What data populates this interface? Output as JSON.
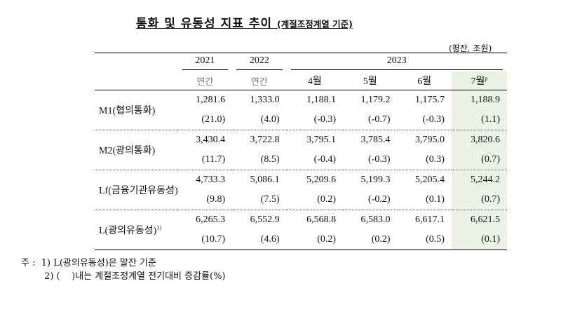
{
  "title": "통화 및 유동성 지표 추이",
  "title_note": "(계절조정계열 기준)",
  "unit": "(평잔, 조원)",
  "years": [
    "2021",
    "2022",
    "2023"
  ],
  "subheaders": [
    "연간",
    "연간",
    "4월",
    "5월",
    "6월",
    "7월"
  ],
  "subheader_sup": "p",
  "highlight_color": "#ecf3e4",
  "rows": [
    {
      "label": "M1(협의통화)",
      "sup": "",
      "values": [
        "1,281.6",
        "1,333.0",
        "1,188.1",
        "1,179.2",
        "1,175.7",
        "1,188.9"
      ],
      "changes": [
        "(21.0)",
        "(4.0)",
        "(-0.3)",
        "(-0.7)",
        "(-0.3)",
        "(1.1)"
      ]
    },
    {
      "label": "M2(광의통화)",
      "sup": "",
      "values": [
        "3,430.4",
        "3,722.8",
        "3,795.1",
        "3,785.4",
        "3,795.0",
        "3,820.6"
      ],
      "changes": [
        "(11.7)",
        "(8.5)",
        "(-0.4)",
        "(-0.3)",
        "(0.3)",
        "(0.7)"
      ]
    },
    {
      "label": "Lf(금융기관유동성)",
      "sup": "",
      "values": [
        "4,733.3",
        "5,086.1",
        "5,209.6",
        "5,199.3",
        "5,205.4",
        "5,244.2"
      ],
      "changes": [
        "(9.8)",
        "(7.5)",
        "(0.2)",
        "(-0.2)",
        "(0.1)",
        "(0.7)"
      ]
    },
    {
      "label": "L(광의유동성)",
      "sup": "1)",
      "values": [
        "6,265.3",
        "6,552.9",
        "6,568.8",
        "6,583.0",
        "6,617.1",
        "6,621.5"
      ],
      "changes": [
        "(10.7)",
        "(4.6)",
        "(0.2)",
        "(0.2)",
        "(0.5)",
        "(0.1)"
      ]
    }
  ],
  "notes": [
    "주 :  1) L(광의유동성)은 말잔 기준",
    "        2) (    )내는 계절조정계열 전기대비 증감률(%)"
  ]
}
